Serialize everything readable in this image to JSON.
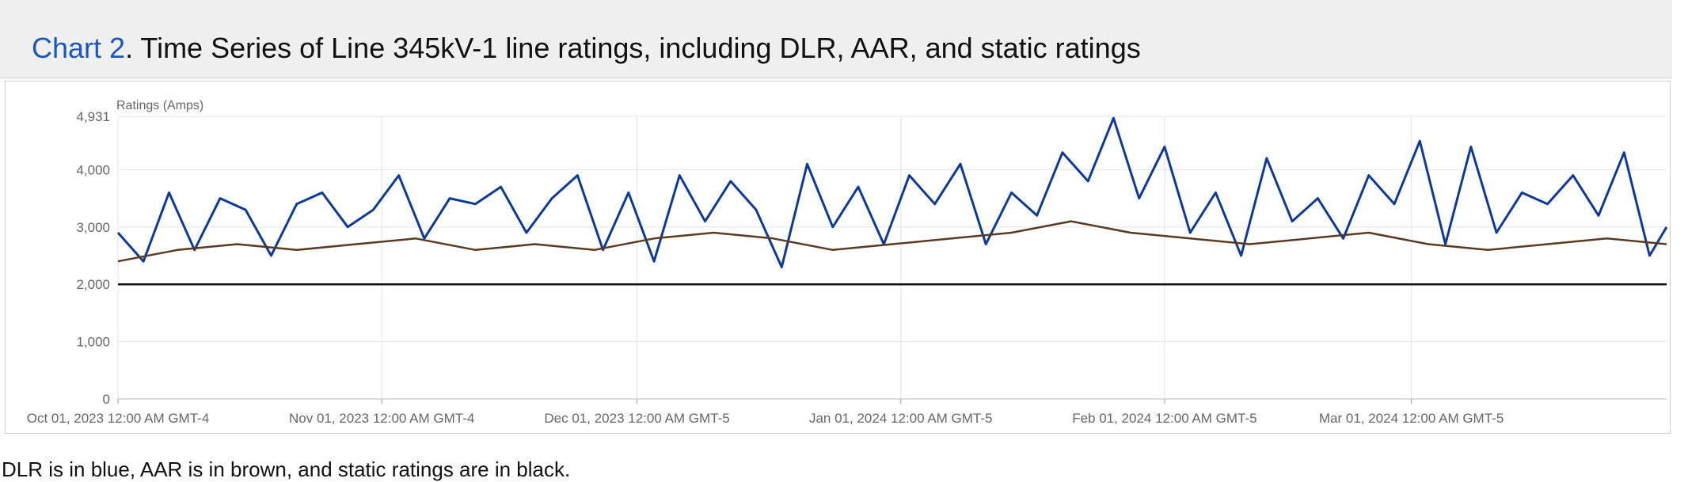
{
  "title": {
    "link_text": "Chart 2",
    "rest": ". Time Series of Line 345kV-1 line ratings, including DLR, AAR, and static ratings"
  },
  "caption": "DLR is in blue, AAR is in brown, and static ratings are in black.",
  "colors": {
    "dlr": "#0d3a9a",
    "aar": "#5a3a20",
    "static": "#111111",
    "grid": "#e4e4e4",
    "link": "#1a56c4"
  },
  "chart_data": {
    "type": "line",
    "title": "",
    "ylabel": "Ratings (Amps)",
    "xlabel": "",
    "ylim": [
      0,
      4931
    ],
    "y_ticks": [
      0,
      1000,
      2000,
      3000,
      4000,
      4931
    ],
    "y_tick_labels": [
      "0",
      "1,000",
      "2,000",
      "3,000",
      "4,000",
      "4,931"
    ],
    "x_range": [
      "2023-10-01",
      "2024-03-31"
    ],
    "x_ticks": [
      "2023-10-01",
      "2023-11-01",
      "2023-12-01",
      "2024-01-01",
      "2024-02-01",
      "2024-03-01"
    ],
    "x_tick_labels": [
      "Oct 01, 2023 12:00 AM GMT-4",
      "Nov 01, 2023 12:00 AM GMT-4",
      "Dec 01, 2023 12:00 AM GMT-5",
      "Jan 01, 2024 12:00 AM GMT-5",
      "Feb 01, 2024 12:00 AM GMT-5",
      "Mar 01, 2024 12:00 AM GMT-5"
    ],
    "grid": true,
    "series": [
      {
        "key": "dlr",
        "x": [
          "2023-10-01",
          "2023-10-04",
          "2023-10-07",
          "2023-10-10",
          "2023-10-13",
          "2023-10-16",
          "2023-10-19",
          "2023-10-22",
          "2023-10-25",
          "2023-10-28",
          "2023-10-31",
          "2023-11-03",
          "2023-11-06",
          "2023-11-09",
          "2023-11-12",
          "2023-11-15",
          "2023-11-18",
          "2023-11-21",
          "2023-11-24",
          "2023-11-27",
          "2023-11-30",
          "2023-12-03",
          "2023-12-06",
          "2023-12-09",
          "2023-12-12",
          "2023-12-15",
          "2023-12-18",
          "2023-12-21",
          "2023-12-24",
          "2023-12-27",
          "2023-12-30",
          "2024-01-02",
          "2024-01-05",
          "2024-01-08",
          "2024-01-11",
          "2024-01-14",
          "2024-01-17",
          "2024-01-20",
          "2024-01-23",
          "2024-01-26",
          "2024-01-29",
          "2024-02-01",
          "2024-02-04",
          "2024-02-07",
          "2024-02-10",
          "2024-02-13",
          "2024-02-16",
          "2024-02-19",
          "2024-02-22",
          "2024-02-25",
          "2024-02-28",
          "2024-03-02",
          "2024-03-05",
          "2024-03-08",
          "2024-03-11",
          "2024-03-14",
          "2024-03-17",
          "2024-03-20",
          "2024-03-23",
          "2024-03-26",
          "2024-03-29",
          "2024-03-31"
        ],
        "y": [
          2900,
          2400,
          3600,
          2600,
          3500,
          3300,
          2500,
          3400,
          3600,
          3000,
          3300,
          3900,
          2800,
          3500,
          3400,
          3700,
          2900,
          3500,
          3900,
          2600,
          3600,
          2400,
          3900,
          3100,
          3800,
          3300,
          2300,
          4100,
          3000,
          3700,
          2700,
          3900,
          3400,
          4100,
          2700,
          3600,
          3200,
          4300,
          3800,
          4900,
          3500,
          4400,
          2900,
          3600,
          2500,
          4200,
          3100,
          3500,
          2800,
          3900,
          3400,
          4500,
          2700,
          4400,
          2900,
          3600,
          3400,
          3900,
          3200,
          4300,
          2500,
          3000
        ]
      },
      {
        "key": "aar",
        "x": [
          "2023-10-01",
          "2023-10-08",
          "2023-10-15",
          "2023-10-22",
          "2023-10-29",
          "2023-11-05",
          "2023-11-12",
          "2023-11-19",
          "2023-11-26",
          "2023-12-03",
          "2023-12-10",
          "2023-12-17",
          "2023-12-24",
          "2023-12-31",
          "2024-01-07",
          "2024-01-14",
          "2024-01-21",
          "2024-01-28",
          "2024-02-04",
          "2024-02-11",
          "2024-02-18",
          "2024-02-25",
          "2024-03-03",
          "2024-03-10",
          "2024-03-17",
          "2024-03-24",
          "2024-03-31"
        ],
        "y": [
          2400,
          2600,
          2700,
          2600,
          2700,
          2800,
          2600,
          2700,
          2600,
          2800,
          2900,
          2800,
          2600,
          2700,
          2800,
          2900,
          3100,
          2900,
          2800,
          2700,
          2800,
          2900,
          2700,
          2600,
          2700,
          2800,
          2700
        ]
      },
      {
        "key": "static",
        "x": [
          "2023-10-01",
          "2024-03-31"
        ],
        "y": [
          2000,
          2000
        ]
      }
    ]
  }
}
